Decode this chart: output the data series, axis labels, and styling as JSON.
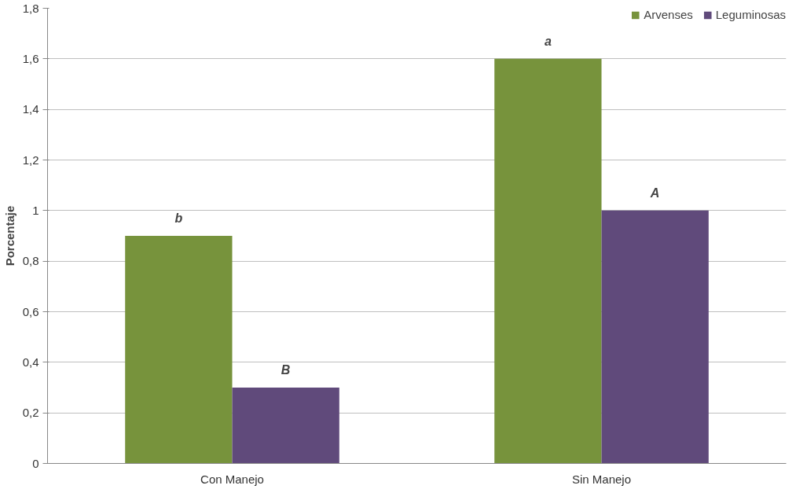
{
  "chart_data": {
    "type": "bar",
    "ylabel": "Porcentaje",
    "categories": [
      "Con Manejo",
      "Sin Manejo"
    ],
    "series": [
      {
        "name": "Arvenses",
        "color": "#77933c",
        "values": [
          0.9,
          1.6
        ]
      },
      {
        "name": "Leguminosas",
        "color": "#604a7b",
        "values": [
          0.3,
          1.0
        ]
      }
    ],
    "ylim": [
      0,
      1.8
    ],
    "yticks": [
      0,
      {
        "value": 0.2,
        "label": "0,2"
      },
      {
        "value": 0.4,
        "label": "0,4"
      },
      {
        "value": 0.6,
        "label": "0,6"
      },
      {
        "value": 0.8,
        "label": "0,8"
      },
      1,
      {
        "value": 1.2,
        "label": "1,2"
      },
      {
        "value": 1.4,
        "label": "1,4"
      },
      {
        "value": 1.6,
        "label": "1,6"
      },
      {
        "value": 1.8,
        "label": "1,8"
      }
    ],
    "grid": "y",
    "legend": "top right",
    "annotations": [
      "b",
      "B",
      "a",
      "A"
    ]
  }
}
